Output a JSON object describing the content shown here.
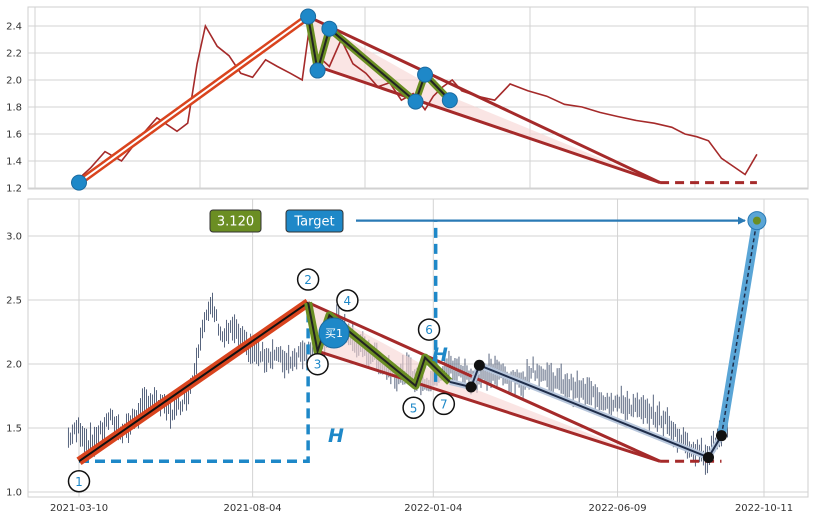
{
  "chart_data": [
    {
      "type": "line",
      "panel": "top",
      "title": "",
      "xlabel": "",
      "ylabel": "",
      "ylim": [
        1.18,
        2.55
      ],
      "yticks": [
        1.2,
        1.4,
        1.6,
        1.8,
        2.0,
        2.2,
        2.4
      ],
      "grid": true,
      "series": [
        {
          "color": "#a52a2a",
          "x": [
            "2021-03-10",
            "2021-03-20",
            "2021-04-01",
            "2021-04-15",
            "2021-05-01",
            "2021-05-15",
            "2021-06-01",
            "2021-06-10",
            "2021-06-18",
            "2021-06-25",
            "2021-07-05",
            "2021-07-15",
            "2021-07-25",
            "2021-08-04",
            "2021-08-15",
            "2021-08-25",
            "2021-09-05",
            "2021-09-15",
            "2021-09-22",
            "2021-09-28",
            "2021-10-08",
            "2021-10-18",
            "2021-10-28",
            "2021-11-08",
            "2021-11-18",
            "2021-11-28",
            "2021-12-08",
            "2021-12-18",
            "2021-12-28",
            "2022-01-04",
            "2022-01-12",
            "2022-01-20",
            "2022-01-28",
            "2022-02-10",
            "2022-02-25",
            "2022-03-10",
            "2022-03-25",
            "2022-04-10",
            "2022-04-25",
            "2022-05-10",
            "2022-05-25",
            "2022-06-09",
            "2022-06-25",
            "2022-07-10",
            "2022-07-25",
            "2022-08-05",
            "2022-08-15",
            "2022-08-25",
            "2022-09-05",
            "2022-09-15",
            "2022-09-25",
            "2022-10-05"
          ],
          "y": [
            1.27,
            1.35,
            1.47,
            1.4,
            1.58,
            1.72,
            1.62,
            1.68,
            2.12,
            2.4,
            2.25,
            2.18,
            2.05,
            2.02,
            2.15,
            2.1,
            2.05,
            2.0,
            2.45,
            2.18,
            2.1,
            2.3,
            2.12,
            2.05,
            1.95,
            1.98,
            1.85,
            1.9,
            1.78,
            1.88,
            1.95,
            2.0,
            1.92,
            1.88,
            1.85,
            1.97,
            1.92,
            1.88,
            1.82,
            1.8,
            1.76,
            1.73,
            1.7,
            1.68,
            1.65,
            1.6,
            1.58,
            1.55,
            1.42,
            1.36,
            1.3,
            1.45
          ]
        }
      ],
      "pattern_points": [
        {
          "x": "2021-03-10",
          "y": 1.24
        },
        {
          "x": "2021-09-20",
          "y": 2.47
        },
        {
          "x": "2021-09-28",
          "y": 2.07
        },
        {
          "x": "2021-10-08",
          "y": 2.38
        },
        {
          "x": "2021-12-20",
          "y": 1.84
        },
        {
          "x": "2021-12-28",
          "y": 2.04
        },
        {
          "x": "2022-01-18",
          "y": 1.85
        }
      ],
      "triangle": {
        "apex": {
          "x": "2021-09-20",
          "y": 2.47
        },
        "upper_end": {
          "x": "2022-01-18",
          "y": 1.88
        },
        "lower_start": {
          "x": "2021-09-28",
          "y": 2.1
        },
        "meet": {
          "x": "2022-07-15",
          "y": 1.24
        },
        "dashed_end": {
          "x": "2022-10-05",
          "y": 1.24
        }
      }
    },
    {
      "type": "candlestick",
      "panel": "bottom",
      "title": "",
      "xlabel": "",
      "ylabel": "",
      "ylim": [
        0.96,
        3.25
      ],
      "yticks": [
        1.0,
        1.5,
        2.0,
        2.5,
        3.0
      ],
      "xticks": [
        "2021-03-10",
        "2021-08-04",
        "2022-01-04",
        "2022-06-09",
        "2022-10-11"
      ],
      "grid": true,
      "price_close": [
        1.42,
        1.5,
        1.38,
        1.45,
        1.58,
        1.48,
        1.52,
        1.65,
        1.72,
        1.68,
        1.62,
        1.7,
        1.85,
        2.3,
        2.45,
        2.2,
        2.28,
        2.15,
        2.1,
        2.05,
        2.08,
        2.02,
        2.05,
        2.12,
        2.08,
        2.18,
        2.35,
        2.25,
        2.15,
        2.1,
        2.05,
        1.98,
        1.9,
        1.95,
        1.88,
        1.85,
        1.92,
        1.98,
        1.95,
        1.9,
        1.88,
        1.95,
        1.92,
        1.88,
        1.85,
        1.96,
        1.92,
        1.88,
        1.85,
        1.82,
        1.78,
        1.76,
        1.72,
        1.7,
        1.68,
        1.66,
        1.62,
        1.6,
        1.55,
        1.45,
        1.38,
        1.32,
        1.28,
        1.42,
        1.48
      ],
      "pattern_points": [
        {
          "label": "1",
          "x": "2021-03-10",
          "y": 1.24
        },
        {
          "label": "2",
          "x": "2021-09-20",
          "y": 2.48
        },
        {
          "label": "3",
          "x": "2021-09-28",
          "y": 2.1
        },
        {
          "label": "4",
          "x": "2021-10-08",
          "y": 2.38
        },
        {
          "label": "5",
          "x": "2021-12-20",
          "y": 1.83
        },
        {
          "label": "6",
          "x": "2021-12-28",
          "y": 2.05
        },
        {
          "label": "7",
          "x": "2022-01-18",
          "y": 1.86
        }
      ],
      "projection_points": [
        {
          "x": "2022-01-18",
          "y": 1.86
        },
        {
          "x": "2022-02-05",
          "y": 1.82
        },
        {
          "x": "2022-02-12",
          "y": 1.99
        },
        {
          "x": "2022-08-25",
          "y": 1.27
        },
        {
          "x": "2022-09-05",
          "y": 1.44
        },
        {
          "x": "2022-10-05",
          "y": 3.12
        }
      ],
      "annotations": {
        "target_value": "3.120",
        "target_label": "Target",
        "target_y": 3.12,
        "buy_label": "买1",
        "height_label": "H"
      }
    }
  ]
}
